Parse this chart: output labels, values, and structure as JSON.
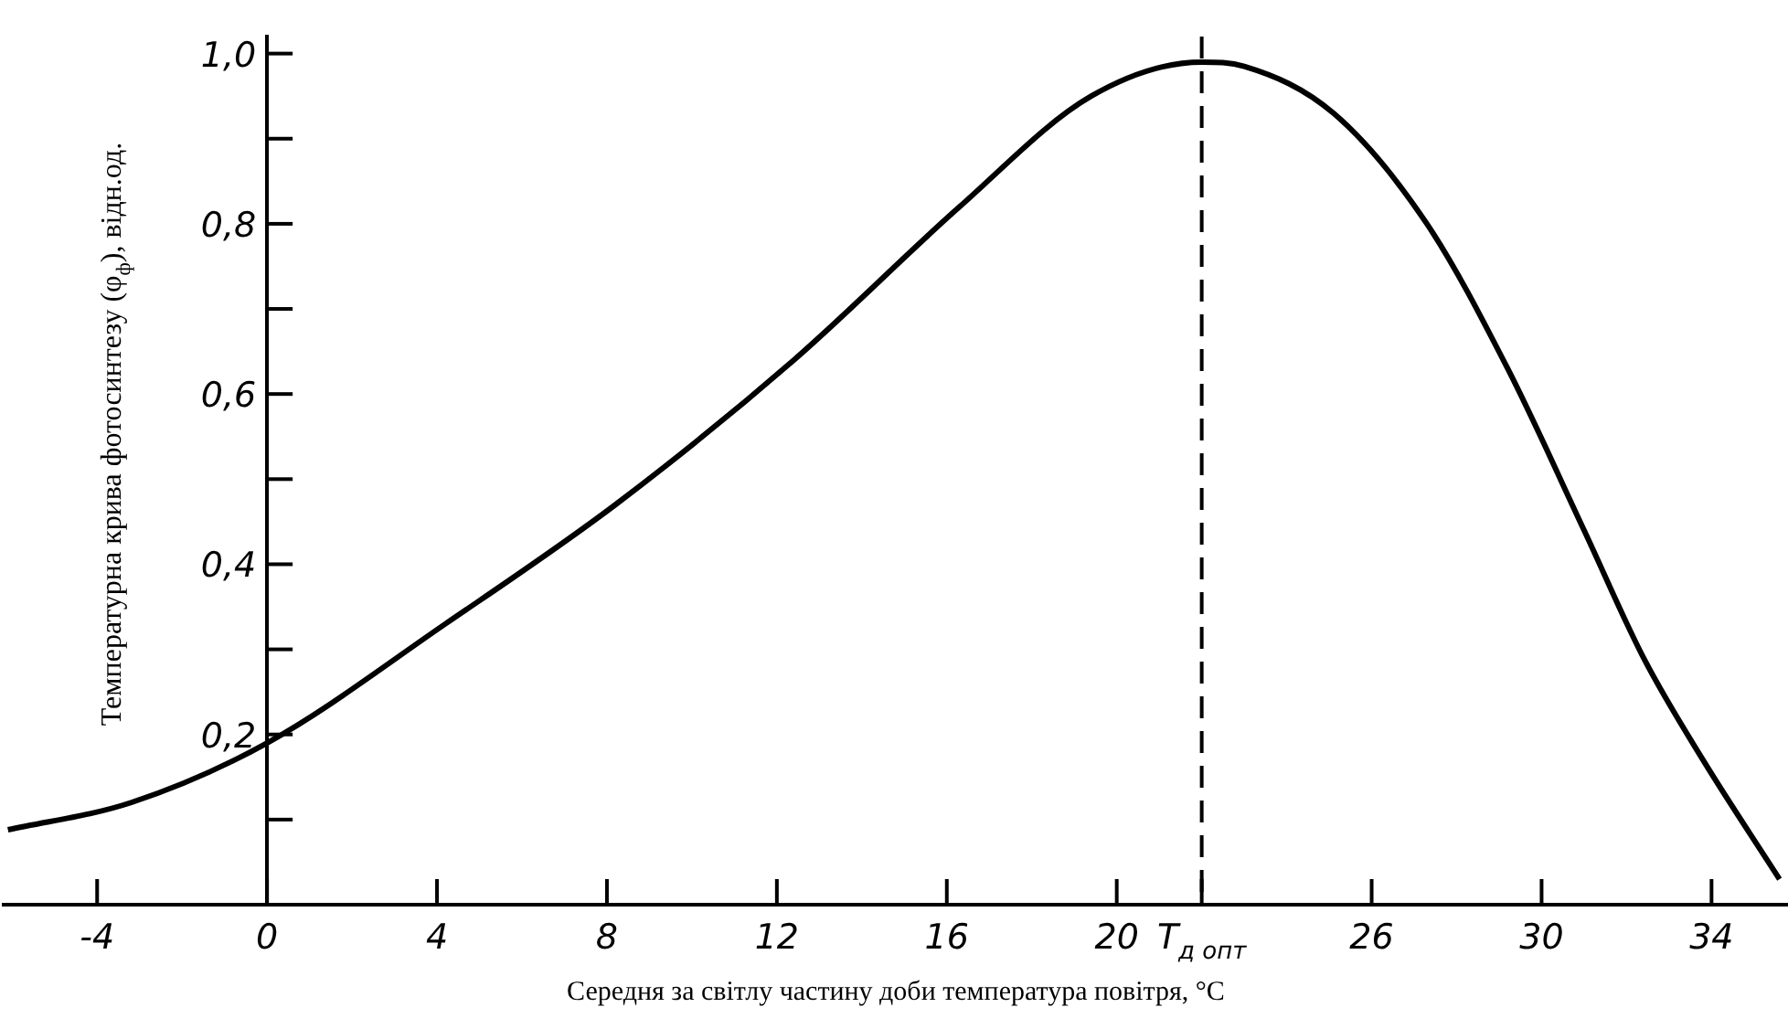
{
  "chart_data": {
    "type": "line",
    "xlabel": "Середня за світлу частину доби температура повітря, °C",
    "ylabel": "Температурна крива фотосинтезу (φ$_{ф}$), відн.од.",
    "x": [
      -6.1,
      -3.2,
      0,
      4.2,
      8.2,
      12.4,
      16.3,
      19.4,
      22,
      23,
      25.1,
      27.3,
      29.2,
      31,
      32.4,
      33.8,
      35.6
    ],
    "series": [
      {
        "color": "#000000",
        "values": [
          0.088,
          0.12,
          0.19,
          0.33,
          0.47,
          0.64,
          0.82,
          0.95,
          0.99,
          0.985,
          0.93,
          0.8,
          0.63,
          0.44,
          0.29,
          0.17,
          0.03
        ]
      }
    ],
    "xlim": [
      -6.2,
      35.8
    ],
    "ylim": [
      0,
      1.02
    ],
    "xticks": [
      -4,
      0,
      4,
      8,
      12,
      16,
      20,
      {
        "value": 22,
        "label": "T$_{д опт}$"
      },
      26,
      30,
      34
    ],
    "yticks": [
      {
        "value": 0.1,
        "label": null
      },
      {
        "value": 0.2,
        "label": "0,2"
      },
      {
        "value": 0.3,
        "label": null
      },
      {
        "value": 0.4,
        "label": "0,4"
      },
      {
        "value": 0.5,
        "label": null
      },
      {
        "value": 0.6,
        "label": "0,6"
      },
      {
        "value": 0.7,
        "label": null
      },
      {
        "value": 0.8,
        "label": "0,8"
      },
      {
        "value": 0.9,
        "label": null
      },
      {
        "value": 1.0,
        "label": "1,0"
      }
    ],
    "ref_lines": [
      {
        "axis": "x",
        "value": 22,
        "line_style": "dashed",
        "color": "#000000"
      }
    ],
    "marker": "none",
    "line_style": "solid",
    "grid": false,
    "legend": false
  }
}
